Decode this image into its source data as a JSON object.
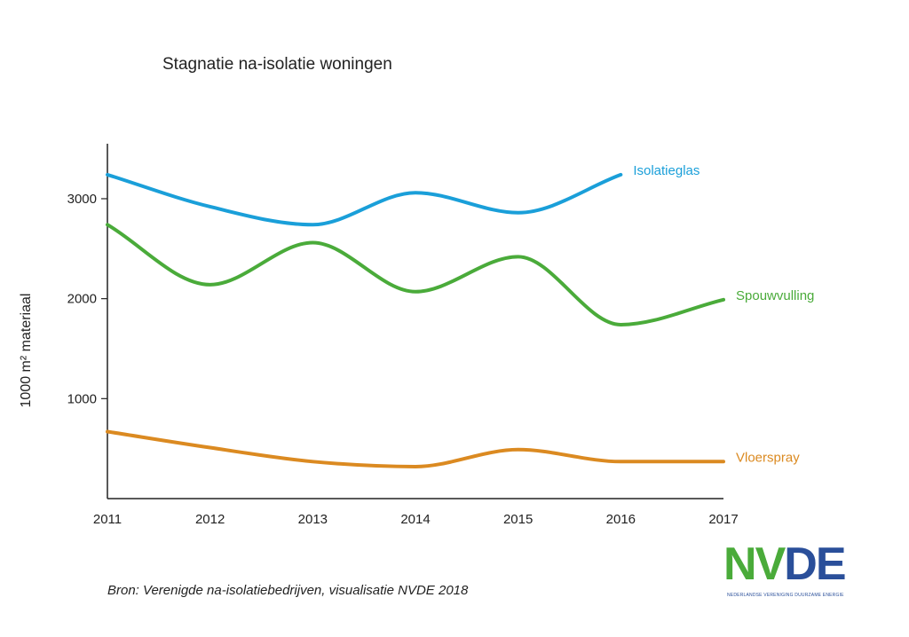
{
  "colors": {
    "isolatieglas": "#1a9fd9",
    "spouwvulling": "#4aab3a",
    "vloerspray": "#db8a21",
    "logo_green": "#4aab3a",
    "logo_blue": "#2a4f9a"
  },
  "source": "Bron: Verenigde na-isolatiebedrijven, visualisatie NVDE 2018",
  "logo": {
    "letters": [
      "N",
      "V",
      "D",
      "E"
    ],
    "tagline": "NEDERLANDSE VERENIGING DUURZAME ENERGIE"
  },
  "chart_data": {
    "type": "line",
    "title": "Stagnatie na-isolatie woningen",
    "xlabel": "",
    "ylabel": "1000 m² materiaal",
    "x": [
      "2011",
      "2012",
      "2013",
      "2014",
      "2015",
      "2016",
      "2017"
    ],
    "xlim": [
      2011,
      2017
    ],
    "ylim": [
      0,
      3550
    ],
    "yticks": [
      1000,
      2000,
      3000
    ],
    "grid": false,
    "legend": "labels at line ends",
    "series": [
      {
        "name": "Isolatieglas",
        "color": "#1a9fd9",
        "x": [
          2011,
          2012,
          2013,
          2014,
          2015,
          2016
        ],
        "values": [
          3240,
          2920,
          2740,
          3060,
          2860,
          3240
        ]
      },
      {
        "name": "Spouwvulling",
        "color": "#4aab3a",
        "x": [
          2011,
          2012,
          2013,
          2014,
          2015,
          2016,
          2017
        ],
        "values": [
          2740,
          2140,
          2560,
          2070,
          2420,
          1740,
          1990
        ]
      },
      {
        "name": "Vloerspray",
        "color": "#db8a21",
        "x": [
          2011,
          2012,
          2013,
          2014,
          2015,
          2016,
          2017
        ],
        "values": [
          670,
          510,
          370,
          320,
          490,
          370,
          370
        ]
      }
    ]
  }
}
